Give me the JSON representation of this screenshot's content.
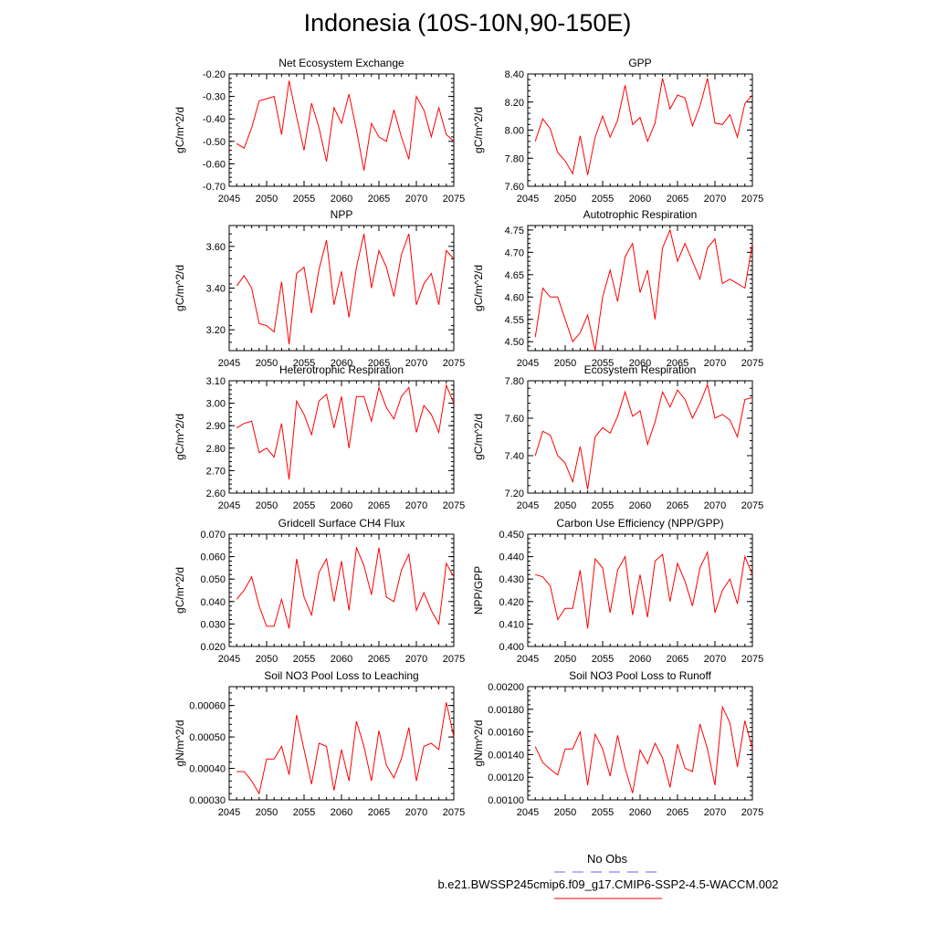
{
  "figure_title": "Indonesia (10S-10N,90-150E)",
  "legend": {
    "obs_label": "No Obs",
    "model_label": "b.e21.BWSSP245cmip6.f09_g17.CMIP6-SSP2-4.5-WACCM.002",
    "obs_color": "#6666ff",
    "model_color": "#ff0000"
  },
  "chart_data": [
    {
      "type": "line",
      "title": "Net Ecosystem Exchange",
      "ylabel": "gC/m^2/d",
      "xlim": [
        2045,
        2075
      ],
      "ylim": [
        -0.7,
        -0.2
      ],
      "xticks": [
        2045,
        2050,
        2055,
        2060,
        2065,
        2070,
        2075
      ],
      "yticks": [
        "-0.70",
        "-0.60",
        "-0.50",
        "-0.40",
        "-0.30",
        "-0.20"
      ],
      "x": [
        2046,
        2047,
        2048,
        2049,
        2050,
        2051,
        2052,
        2053,
        2054,
        2055,
        2056,
        2057,
        2058,
        2059,
        2060,
        2061,
        2062,
        2063,
        2064,
        2065,
        2066,
        2067,
        2068,
        2069,
        2070,
        2071,
        2072,
        2073,
        2074,
        2075
      ],
      "series": [
        {
          "color": "#ff0000",
          "values": [
            -0.51,
            -0.53,
            -0.44,
            -0.32,
            -0.31,
            -0.3,
            -0.47,
            -0.23,
            -0.39,
            -0.54,
            -0.33,
            -0.44,
            -0.59,
            -0.35,
            -0.42,
            -0.29,
            -0.45,
            -0.63,
            -0.42,
            -0.48,
            -0.5,
            -0.36,
            -0.48,
            -0.58,
            -0.3,
            -0.36,
            -0.48,
            -0.35,
            -0.47,
            -0.5
          ]
        }
      ]
    },
    {
      "type": "line",
      "title": "GPP",
      "ylabel": "gC/m^2/d",
      "xlim": [
        2045,
        2075
      ],
      "ylim": [
        7.6,
        8.4
      ],
      "xticks": [
        2045,
        2050,
        2055,
        2060,
        2065,
        2070,
        2075
      ],
      "yticks": [
        "7.60",
        "7.80",
        "8.00",
        "8.20",
        "8.40"
      ],
      "x": [
        2046,
        2047,
        2048,
        2049,
        2050,
        2051,
        2052,
        2053,
        2054,
        2055,
        2056,
        2057,
        2058,
        2059,
        2060,
        2061,
        2062,
        2063,
        2064,
        2065,
        2066,
        2067,
        2068,
        2069,
        2070,
        2071,
        2072,
        2073,
        2074,
        2075
      ],
      "series": [
        {
          "color": "#ff0000",
          "values": [
            7.92,
            8.08,
            8.01,
            7.84,
            7.78,
            7.69,
            7.96,
            7.68,
            7.95,
            8.1,
            7.95,
            8.07,
            8.32,
            8.04,
            8.09,
            7.92,
            8.05,
            8.37,
            8.15,
            8.25,
            8.23,
            8.03,
            8.17,
            8.37,
            8.05,
            8.04,
            8.11,
            7.95,
            8.19,
            8.25
          ]
        }
      ]
    },
    {
      "type": "line",
      "title": "NPP",
      "ylabel": "gC/m^2/d",
      "xlim": [
        2045,
        2075
      ],
      "ylim": [
        3.1,
        3.7
      ],
      "xticks": [
        2045,
        2050,
        2055,
        2060,
        2065,
        2070,
        2075
      ],
      "yticks": [
        "3.20",
        "3.40",
        "3.60"
      ],
      "x": [
        2046,
        2047,
        2048,
        2049,
        2050,
        2051,
        2052,
        2053,
        2054,
        2055,
        2056,
        2057,
        2058,
        2059,
        2060,
        2061,
        2062,
        2063,
        2064,
        2065,
        2066,
        2067,
        2068,
        2069,
        2070,
        2071,
        2072,
        2073,
        2074,
        2075
      ],
      "series": [
        {
          "color": "#ff0000",
          "values": [
            3.41,
            3.46,
            3.4,
            3.23,
            3.22,
            3.19,
            3.43,
            3.13,
            3.47,
            3.5,
            3.28,
            3.49,
            3.63,
            3.32,
            3.48,
            3.26,
            3.5,
            3.66,
            3.4,
            3.58,
            3.5,
            3.36,
            3.56,
            3.66,
            3.32,
            3.42,
            3.47,
            3.32,
            3.58,
            3.54
          ]
        }
      ]
    },
    {
      "type": "line",
      "title": "Autotrophic Respiration",
      "ylabel": "gC/m^2/d",
      "xlim": [
        2045,
        2075
      ],
      "ylim": [
        4.48,
        4.76
      ],
      "xticks": [
        2045,
        2050,
        2055,
        2060,
        2065,
        2070,
        2075
      ],
      "yticks": [
        "4.50",
        "4.55",
        "4.60",
        "4.65",
        "4.70",
        "4.75"
      ],
      "x": [
        2046,
        2047,
        2048,
        2049,
        2050,
        2051,
        2052,
        2053,
        2054,
        2055,
        2056,
        2057,
        2058,
        2059,
        2060,
        2061,
        2062,
        2063,
        2064,
        2065,
        2066,
        2067,
        2068,
        2069,
        2070,
        2071,
        2072,
        2073,
        2074,
        2075
      ],
      "series": [
        {
          "color": "#ff0000",
          "values": [
            4.51,
            4.62,
            4.6,
            4.6,
            4.55,
            4.5,
            4.52,
            4.56,
            4.48,
            4.6,
            4.66,
            4.59,
            4.69,
            4.72,
            4.61,
            4.66,
            4.55,
            4.71,
            4.75,
            4.68,
            4.72,
            4.68,
            4.64,
            4.71,
            4.73,
            4.63,
            4.64,
            4.63,
            4.62,
            4.72
          ]
        }
      ]
    },
    {
      "type": "line",
      "title": "Heterotrophic Respiration",
      "ylabel": "gC/m^2/d",
      "xlim": [
        2045,
        2075
      ],
      "ylim": [
        2.6,
        3.1
      ],
      "xticks": [
        2045,
        2050,
        2055,
        2060,
        2065,
        2070,
        2075
      ],
      "yticks": [
        "2.60",
        "2.70",
        "2.80",
        "2.90",
        "3.00",
        "3.10"
      ],
      "x": [
        2046,
        2047,
        2048,
        2049,
        2050,
        2051,
        2052,
        2053,
        2054,
        2055,
        2056,
        2057,
        2058,
        2059,
        2060,
        2061,
        2062,
        2063,
        2064,
        2065,
        2066,
        2067,
        2068,
        2069,
        2070,
        2071,
        2072,
        2073,
        2074,
        2075
      ],
      "series": [
        {
          "color": "#ff0000",
          "values": [
            2.89,
            2.91,
            2.92,
            2.78,
            2.8,
            2.76,
            2.91,
            2.66,
            3.01,
            2.95,
            2.86,
            3.01,
            3.04,
            2.89,
            3.03,
            2.8,
            3.03,
            3.03,
            2.92,
            3.07,
            2.98,
            2.93,
            3.03,
            3.07,
            2.87,
            2.99,
            2.95,
            2.87,
            3.08,
            3.0
          ]
        }
      ]
    },
    {
      "type": "line",
      "title": "Ecosystem Respiration",
      "ylabel": "gC/m^2/d",
      "xlim": [
        2045,
        2075
      ],
      "ylim": [
        7.2,
        7.8
      ],
      "xticks": [
        2045,
        2050,
        2055,
        2060,
        2065,
        2070,
        2075
      ],
      "yticks": [
        "7.20",
        "7.40",
        "7.60",
        "7.80"
      ],
      "x": [
        2046,
        2047,
        2048,
        2049,
        2050,
        2051,
        2052,
        2053,
        2054,
        2055,
        2056,
        2057,
        2058,
        2059,
        2060,
        2061,
        2062,
        2063,
        2064,
        2065,
        2066,
        2067,
        2068,
        2069,
        2070,
        2071,
        2072,
        2073,
        2074,
        2075
      ],
      "series": [
        {
          "color": "#ff0000",
          "values": [
            7.4,
            7.53,
            7.51,
            7.4,
            7.36,
            7.26,
            7.45,
            7.22,
            7.5,
            7.55,
            7.52,
            7.61,
            7.74,
            7.61,
            7.64,
            7.46,
            7.58,
            7.74,
            7.66,
            7.75,
            7.7,
            7.6,
            7.68,
            7.78,
            7.6,
            7.62,
            7.59,
            7.5,
            7.7,
            7.71
          ]
        }
      ]
    },
    {
      "type": "line",
      "title": "Gridcell Surface CH4 Flux",
      "ylabel": "gC/m^2/d",
      "xlim": [
        2045,
        2075
      ],
      "ylim": [
        0.02,
        0.07
      ],
      "xticks": [
        2045,
        2050,
        2055,
        2060,
        2065,
        2070,
        2075
      ],
      "yticks": [
        "0.020",
        "0.030",
        "0.040",
        "0.050",
        "0.060",
        "0.070"
      ],
      "x": [
        2046,
        2047,
        2048,
        2049,
        2050,
        2051,
        2052,
        2053,
        2054,
        2055,
        2056,
        2057,
        2058,
        2059,
        2060,
        2061,
        2062,
        2063,
        2064,
        2065,
        2066,
        2067,
        2068,
        2069,
        2070,
        2071,
        2072,
        2073,
        2074,
        2075
      ],
      "series": [
        {
          "color": "#ff0000",
          "values": [
            0.041,
            0.045,
            0.051,
            0.038,
            0.029,
            0.029,
            0.041,
            0.028,
            0.059,
            0.042,
            0.034,
            0.053,
            0.059,
            0.04,
            0.058,
            0.036,
            0.064,
            0.056,
            0.043,
            0.064,
            0.042,
            0.04,
            0.054,
            0.061,
            0.036,
            0.044,
            0.036,
            0.03,
            0.057,
            0.051
          ]
        }
      ]
    },
    {
      "type": "line",
      "title": "Carbon Use Efficiency (NPP/GPP)",
      "ylabel": "NPP/GPP",
      "xlim": [
        2045,
        2075
      ],
      "ylim": [
        0.4,
        0.45
      ],
      "xticks": [
        2045,
        2050,
        2055,
        2060,
        2065,
        2070,
        2075
      ],
      "yticks": [
        "0.400",
        "0.410",
        "0.420",
        "0.430",
        "0.440",
        "0.450"
      ],
      "x": [
        2046,
        2047,
        2048,
        2049,
        2050,
        2051,
        2052,
        2053,
        2054,
        2055,
        2056,
        2057,
        2058,
        2059,
        2060,
        2061,
        2062,
        2063,
        2064,
        2065,
        2066,
        2067,
        2068,
        2069,
        2070,
        2071,
        2072,
        2073,
        2074,
        2075
      ],
      "series": [
        {
          "color": "#ff0000",
          "values": [
            0.432,
            0.431,
            0.427,
            0.412,
            0.417,
            0.417,
            0.434,
            0.408,
            0.439,
            0.435,
            0.415,
            0.434,
            0.44,
            0.414,
            0.432,
            0.413,
            0.438,
            0.441,
            0.42,
            0.437,
            0.429,
            0.418,
            0.435,
            0.442,
            0.415,
            0.425,
            0.43,
            0.419,
            0.44,
            0.432
          ]
        }
      ]
    },
    {
      "type": "line",
      "title": "Soil NO3 Pool Loss to Leaching",
      "ylabel": "gN/m^2/d",
      "xlim": [
        2045,
        2075
      ],
      "ylim": [
        0.0003,
        0.00066
      ],
      "xticks": [
        2045,
        2050,
        2055,
        2060,
        2065,
        2070,
        2075
      ],
      "yticks": [
        "0.00030",
        "0.00040",
        "0.00050",
        "0.00060"
      ],
      "x": [
        2046,
        2047,
        2048,
        2049,
        2050,
        2051,
        2052,
        2053,
        2054,
        2055,
        2056,
        2057,
        2058,
        2059,
        2060,
        2061,
        2062,
        2063,
        2064,
        2065,
        2066,
        2067,
        2068,
        2069,
        2070,
        2071,
        2072,
        2073,
        2074,
        2075
      ],
      "series": [
        {
          "color": "#ff0000",
          "values": [
            0.00039,
            0.00039,
            0.00036,
            0.00032,
            0.00043,
            0.00043,
            0.00047,
            0.00038,
            0.00057,
            0.00046,
            0.00035,
            0.00048,
            0.00047,
            0.00033,
            0.00046,
            0.00036,
            0.00055,
            0.00047,
            0.00036,
            0.00052,
            0.00041,
            0.00037,
            0.00043,
            0.00053,
            0.00036,
            0.00047,
            0.00048,
            0.00046,
            0.00061,
            0.0005
          ]
        }
      ]
    },
    {
      "type": "line",
      "title": "Soil NO3 Pool Loss to Runoff",
      "ylabel": "gN/m^2/d",
      "xlim": [
        2045,
        2075
      ],
      "ylim": [
        0.001,
        0.002
      ],
      "xticks": [
        2045,
        2050,
        2055,
        2060,
        2065,
        2070,
        2075
      ],
      "yticks": [
        "0.00100",
        "0.00120",
        "0.00140",
        "0.00160",
        "0.00180",
        "0.00200"
      ],
      "x": [
        2046,
        2047,
        2048,
        2049,
        2050,
        2051,
        2052,
        2053,
        2054,
        2055,
        2056,
        2057,
        2058,
        2059,
        2060,
        2061,
        2062,
        2063,
        2064,
        2065,
        2066,
        2067,
        2068,
        2069,
        2070,
        2071,
        2072,
        2073,
        2074,
        2075
      ],
      "series": [
        {
          "color": "#ff0000",
          "values": [
            0.00147,
            0.00133,
            0.00127,
            0.00122,
            0.00145,
            0.00145,
            0.0016,
            0.00113,
            0.00158,
            0.00145,
            0.00121,
            0.00157,
            0.00128,
            0.00106,
            0.00144,
            0.00132,
            0.0015,
            0.00137,
            0.00111,
            0.00149,
            0.00128,
            0.00125,
            0.00167,
            0.00145,
            0.00113,
            0.00182,
            0.00168,
            0.00129,
            0.0017,
            0.00145
          ]
        }
      ]
    }
  ]
}
